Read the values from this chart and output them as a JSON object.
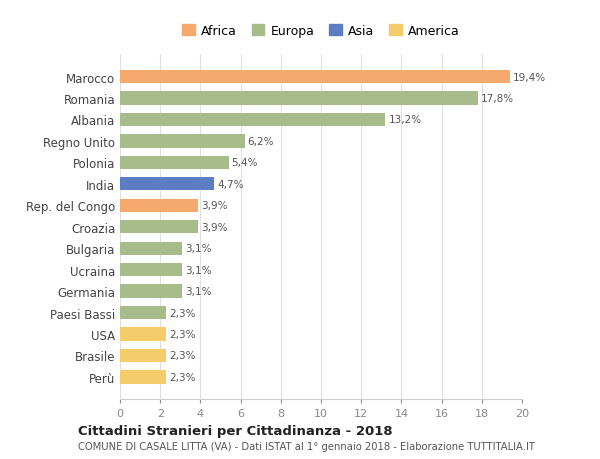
{
  "countries": [
    "Marocco",
    "Romania",
    "Albania",
    "Regno Unito",
    "Polonia",
    "India",
    "Rep. del Congo",
    "Croazia",
    "Bulgaria",
    "Ucraina",
    "Germania",
    "Paesi Bassi",
    "USA",
    "Brasile",
    "Perù"
  ],
  "values": [
    19.4,
    17.8,
    13.2,
    6.2,
    5.4,
    4.7,
    3.9,
    3.9,
    3.1,
    3.1,
    3.1,
    2.3,
    2.3,
    2.3,
    2.3
  ],
  "labels": [
    "19,4%",
    "17,8%",
    "13,2%",
    "6,2%",
    "5,4%",
    "4,7%",
    "3,9%",
    "3,9%",
    "3,1%",
    "3,1%",
    "3,1%",
    "2,3%",
    "2,3%",
    "2,3%",
    "2,3%"
  ],
  "continents": [
    "Africa",
    "Europa",
    "Europa",
    "Europa",
    "Europa",
    "Asia",
    "Africa",
    "Europa",
    "Europa",
    "Europa",
    "Europa",
    "Europa",
    "America",
    "America",
    "America"
  ],
  "colors": {
    "Africa": "#F5A96C",
    "Europa": "#A8BB8A",
    "Asia": "#5B7DC1",
    "America": "#F5CC6A"
  },
  "legend_order": [
    "Africa",
    "Europa",
    "Asia",
    "America"
  ],
  "title": "Cittadini Stranieri per Cittadinanza - 2018",
  "subtitle": "COMUNE DI CASALE LITTA (VA) - Dati ISTAT al 1° gennaio 2018 - Elaborazione TUTTITALIA.IT",
  "xlim": [
    0,
    20
  ],
  "xticks": [
    0,
    2,
    4,
    6,
    8,
    10,
    12,
    14,
    16,
    18,
    20
  ],
  "bg_color": "#ffffff",
  "grid_color": "#e0e0e0"
}
